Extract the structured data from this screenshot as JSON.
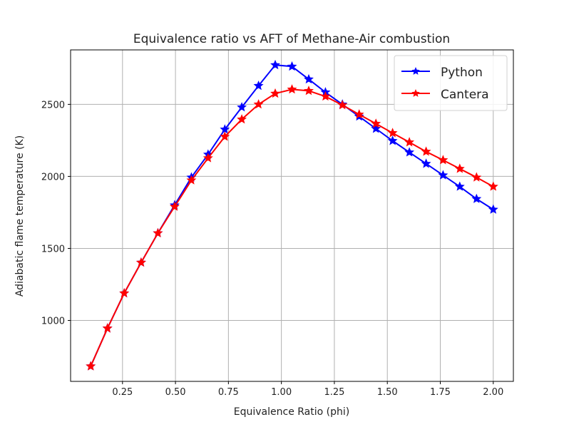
{
  "chart_data": {
    "type": "line",
    "title": "Equivalence ratio vs AFT of Methane-Air combustion",
    "xlabel": "Equivalence Ratio (phi)",
    "ylabel": "Adiabatic flame temperature (K)",
    "xlim": [
      0.005,
      2.095
    ],
    "ylim": [
      577,
      2878
    ],
    "xticks": [
      0.25,
      0.5,
      0.75,
      1.0,
      1.25,
      1.5,
      1.75,
      2.0
    ],
    "xtick_labels": [
      "0.25",
      "0.50",
      "0.75",
      "1.00",
      "1.25",
      "1.50",
      "1.75",
      "2.00"
    ],
    "yticks": [
      1000,
      1500,
      2000,
      2500
    ],
    "ytick_labels": [
      "1000",
      "1500",
      "2000",
      "2500"
    ],
    "grid": true,
    "legend": "top-right",
    "x": [
      0.1,
      0.179,
      0.258,
      0.338,
      0.417,
      0.496,
      0.575,
      0.654,
      0.733,
      0.813,
      0.892,
      0.971,
      1.05,
      1.129,
      1.208,
      1.288,
      1.367,
      1.446,
      1.525,
      1.604,
      1.683,
      1.763,
      1.842,
      1.921,
      2.0
    ],
    "series": [
      {
        "name": "Python",
        "color": "#0000ff",
        "marker": "star",
        "values": [
          682,
          945,
          1189,
          1402,
          1606,
          1800,
          1993,
          2152,
          2326,
          2480,
          2629,
          2773,
          2763,
          2674,
          2584,
          2500,
          2416,
          2331,
          2247,
          2167,
          2088,
          2008,
          1929,
          1844,
          1770
        ]
      },
      {
        "name": "Cantera",
        "color": "#ff0000",
        "marker": "star",
        "values": [
          682,
          945,
          1189,
          1402,
          1606,
          1790,
          1973,
          2127,
          2276,
          2396,
          2500,
          2575,
          2604,
          2594,
          2555,
          2495,
          2430,
          2366,
          2301,
          2237,
          2172,
          2113,
          2053,
          1993,
          1929
        ]
      }
    ]
  }
}
